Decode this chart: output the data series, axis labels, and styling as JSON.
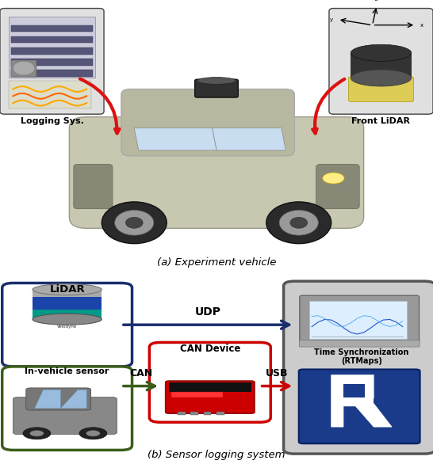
{
  "figure_width": 5.46,
  "figure_height": 5.86,
  "dpi": 100,
  "background_color": "#ffffff",
  "caption_a": "(a) Experiment vehicle",
  "caption_b": "(b) Sensor logging system",
  "label_logging": "Logging Sys.",
  "label_lidar_front": "Front LiDAR",
  "label_lidar_box": "LiDAR",
  "label_sensor": "In-vehicle sensor",
  "label_can": "CAN Device",
  "label_udp": "UDP",
  "label_can_arrow": "CAN",
  "label_usb": "USB",
  "label_time_sync": "Time Synchronization\n(RTMaps)",
  "box_lidar_color": "#1a2e6e",
  "box_sensor_color": "#3a5e1a",
  "box_can_color": "#cc0000",
  "box_right_color": "#888888",
  "arrow_udp_color": "#1a2e6e",
  "arrow_can_color": "#3a5e1a",
  "arrow_usb_color": "#cc0000"
}
